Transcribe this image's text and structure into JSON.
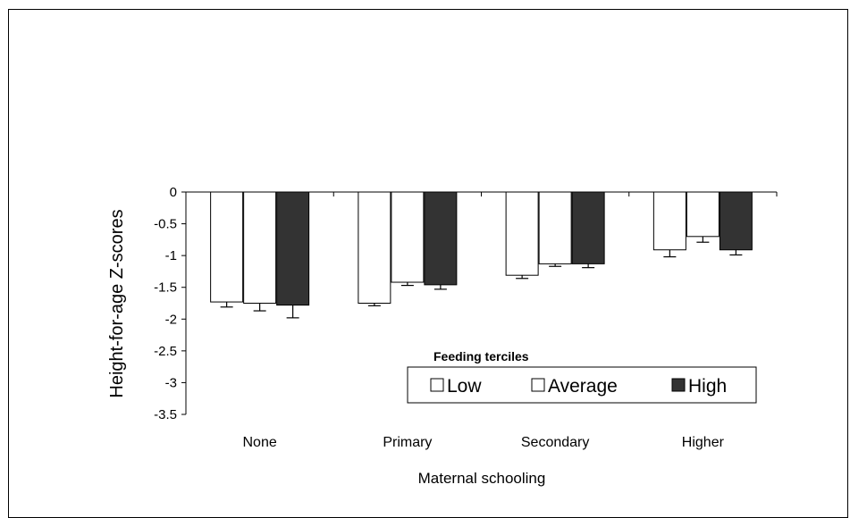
{
  "chart_data": {
    "type": "bar",
    "title": "",
    "xlabel": "Maternal schooling",
    "ylabel": "Height-for-age Z-scores",
    "categories": [
      "None",
      "Primary",
      "Secondary",
      "Higher"
    ],
    "ylim": [
      -3.5,
      0
    ],
    "yticks": [
      0,
      -0.5,
      -1,
      -1.5,
      -2,
      -2.5,
      -3,
      -3.5
    ],
    "ytick_labels": [
      "0",
      "-0.5",
      "-1",
      "-1.5",
      "-2",
      "-2.5",
      "-3",
      "-3.5"
    ],
    "grid": false,
    "legend": {
      "title": "Feeding terciles",
      "placement": "bottom-right"
    },
    "series": [
      {
        "name": "Low",
        "color": "#ffffff",
        "values": [
          -1.73,
          -1.75,
          -1.31,
          -0.91
        ],
        "error": [
          0.08,
          0.04,
          0.05,
          0.11
        ]
      },
      {
        "name": "Average",
        "color": "#ffffff",
        "values": [
          -1.75,
          -1.42,
          -1.13,
          -0.7
        ],
        "error": [
          0.12,
          0.05,
          0.04,
          0.09
        ]
      },
      {
        "name": "High",
        "color": "#333333",
        "values": [
          -1.78,
          -1.46,
          -1.13,
          -0.91
        ],
        "error": [
          0.2,
          0.07,
          0.06,
          0.08
        ]
      }
    ]
  }
}
